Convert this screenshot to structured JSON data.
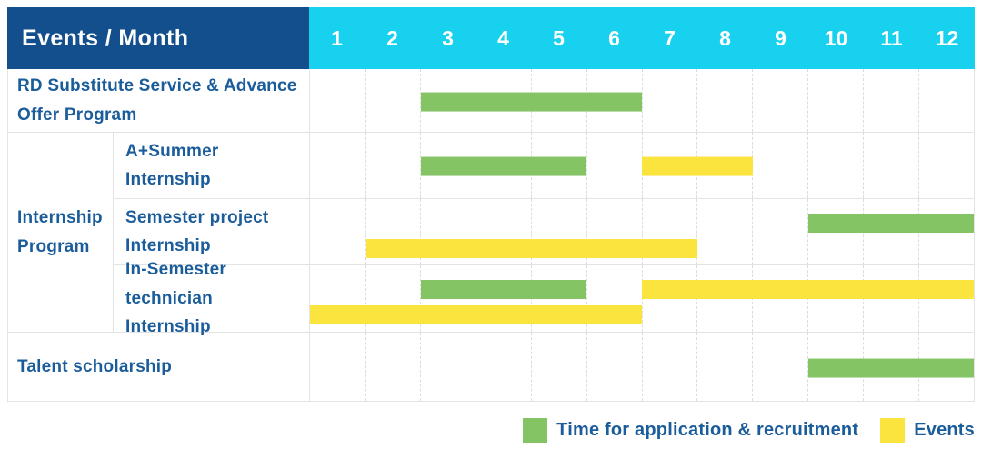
{
  "colors": {
    "header_bg": "#124F8C",
    "months_bg": "#18D1EE",
    "label_text": "#1B5C9B",
    "grid_line": "#e3e3e3",
    "application_green": "#85C464",
    "event_yellow": "#FCE43F"
  },
  "chart_data": {
    "type": "gantt",
    "title": "Events / Month",
    "x_axis": {
      "label": "Month",
      "range": [
        1,
        12
      ],
      "ticks": [
        "1",
        "2",
        "3",
        "4",
        "5",
        "6",
        "7",
        "8",
        "9",
        "10",
        "11",
        "12"
      ]
    },
    "legend": [
      {
        "key": "application",
        "label": "Time for application & recruitment",
        "color": "#85C464"
      },
      {
        "key": "event",
        "label": "Events",
        "color": "#FCE43F"
      }
    ],
    "rows": [
      {
        "label": "RD Substitute Service & Advance Offer Program",
        "group": null,
        "bars": [
          {
            "series": "application",
            "start_month": 3,
            "end_month": 6,
            "lane": "center"
          }
        ]
      },
      {
        "label": "A+Summer Internship",
        "group": "Internship Program",
        "bars": [
          {
            "series": "application",
            "start_month": 3,
            "end_month": 5,
            "lane": "center"
          },
          {
            "series": "event",
            "start_month": 7,
            "end_month": 8,
            "lane": "center"
          }
        ]
      },
      {
        "label": "Semester project Internship",
        "group": "Internship Program",
        "bars": [
          {
            "series": "application",
            "start_month": 10,
            "end_month": 12,
            "lane": "top"
          },
          {
            "series": "event",
            "start_month": 2,
            "end_month": 7,
            "lane": "bottom"
          }
        ]
      },
      {
        "label": "In-Semester technician Internship",
        "group": "Internship Program",
        "bars": [
          {
            "series": "application",
            "start_month": 3,
            "end_month": 5,
            "lane": "top"
          },
          {
            "series": "event",
            "start_month": 7,
            "end_month": 12,
            "lane": "top"
          },
          {
            "series": "event",
            "start_month": 1,
            "end_month": 6,
            "lane": "bottom"
          }
        ]
      },
      {
        "label": "Talent scholarship",
        "group": null,
        "bars": [
          {
            "series": "application",
            "start_month": 10,
            "end_month": 12,
            "lane": "center"
          }
        ]
      }
    ]
  }
}
